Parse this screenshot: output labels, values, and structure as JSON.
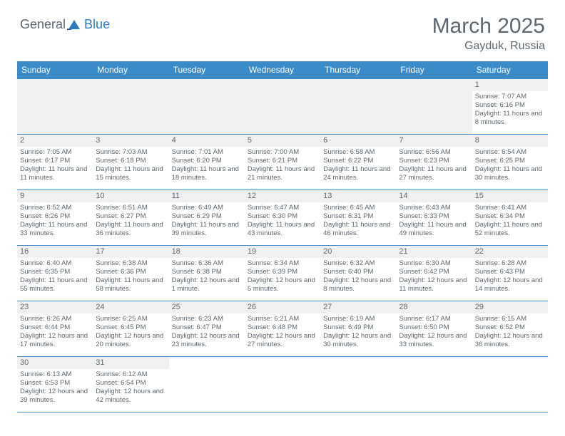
{
  "logo_general": "General",
  "logo_blue": "Blue",
  "month_title": "March 2025",
  "location": "Gayduk, Russia",
  "weekdays": [
    "Sunday",
    "Monday",
    "Tuesday",
    "Wednesday",
    "Thursday",
    "Friday",
    "Saturday"
  ],
  "colors": {
    "header_bg": "#3b8bc8",
    "text": "#5d6770"
  },
  "weeks": [
    [
      {
        "blank": true
      },
      {
        "blank": true
      },
      {
        "blank": true
      },
      {
        "blank": true
      },
      {
        "blank": true
      },
      {
        "blank": true
      },
      {
        "num": "1",
        "sunrise": "Sunrise: 7:07 AM",
        "sunset": "Sunset: 6:16 PM",
        "daylight": "Daylight: 11 hours and 8 minutes."
      }
    ],
    [
      {
        "num": "2",
        "sunrise": "Sunrise: 7:05 AM",
        "sunset": "Sunset: 6:17 PM",
        "daylight": "Daylight: 11 hours and 11 minutes."
      },
      {
        "num": "3",
        "sunrise": "Sunrise: 7:03 AM",
        "sunset": "Sunset: 6:18 PM",
        "daylight": "Daylight: 11 hours and 15 minutes."
      },
      {
        "num": "4",
        "sunrise": "Sunrise: 7:01 AM",
        "sunset": "Sunset: 6:20 PM",
        "daylight": "Daylight: 11 hours and 18 minutes."
      },
      {
        "num": "5",
        "sunrise": "Sunrise: 7:00 AM",
        "sunset": "Sunset: 6:21 PM",
        "daylight": "Daylight: 11 hours and 21 minutes."
      },
      {
        "num": "6",
        "sunrise": "Sunrise: 6:58 AM",
        "sunset": "Sunset: 6:22 PM",
        "daylight": "Daylight: 11 hours and 24 minutes."
      },
      {
        "num": "7",
        "sunrise": "Sunrise: 6:56 AM",
        "sunset": "Sunset: 6:23 PM",
        "daylight": "Daylight: 11 hours and 27 minutes."
      },
      {
        "num": "8",
        "sunrise": "Sunrise: 6:54 AM",
        "sunset": "Sunset: 6:25 PM",
        "daylight": "Daylight: 11 hours and 30 minutes."
      }
    ],
    [
      {
        "num": "9",
        "sunrise": "Sunrise: 6:52 AM",
        "sunset": "Sunset: 6:26 PM",
        "daylight": "Daylight: 11 hours and 33 minutes."
      },
      {
        "num": "10",
        "sunrise": "Sunrise: 6:51 AM",
        "sunset": "Sunset: 6:27 PM",
        "daylight": "Daylight: 11 hours and 36 minutes."
      },
      {
        "num": "11",
        "sunrise": "Sunrise: 6:49 AM",
        "sunset": "Sunset: 6:29 PM",
        "daylight": "Daylight: 11 hours and 39 minutes."
      },
      {
        "num": "12",
        "sunrise": "Sunrise: 6:47 AM",
        "sunset": "Sunset: 6:30 PM",
        "daylight": "Daylight: 11 hours and 43 minutes."
      },
      {
        "num": "13",
        "sunrise": "Sunrise: 6:45 AM",
        "sunset": "Sunset: 6:31 PM",
        "daylight": "Daylight: 11 hours and 46 minutes."
      },
      {
        "num": "14",
        "sunrise": "Sunrise: 6:43 AM",
        "sunset": "Sunset: 6:33 PM",
        "daylight": "Daylight: 11 hours and 49 minutes."
      },
      {
        "num": "15",
        "sunrise": "Sunrise: 6:41 AM",
        "sunset": "Sunset: 6:34 PM",
        "daylight": "Daylight: 11 hours and 52 minutes."
      }
    ],
    [
      {
        "num": "16",
        "sunrise": "Sunrise: 6:40 AM",
        "sunset": "Sunset: 6:35 PM",
        "daylight": "Daylight: 11 hours and 55 minutes."
      },
      {
        "num": "17",
        "sunrise": "Sunrise: 6:38 AM",
        "sunset": "Sunset: 6:36 PM",
        "daylight": "Daylight: 11 hours and 58 minutes."
      },
      {
        "num": "18",
        "sunrise": "Sunrise: 6:36 AM",
        "sunset": "Sunset: 6:38 PM",
        "daylight": "Daylight: 12 hours and 1 minute."
      },
      {
        "num": "19",
        "sunrise": "Sunrise: 6:34 AM",
        "sunset": "Sunset: 6:39 PM",
        "daylight": "Daylight: 12 hours and 5 minutes."
      },
      {
        "num": "20",
        "sunrise": "Sunrise: 6:32 AM",
        "sunset": "Sunset: 6:40 PM",
        "daylight": "Daylight: 12 hours and 8 minutes."
      },
      {
        "num": "21",
        "sunrise": "Sunrise: 6:30 AM",
        "sunset": "Sunset: 6:42 PM",
        "daylight": "Daylight: 12 hours and 11 minutes."
      },
      {
        "num": "22",
        "sunrise": "Sunrise: 6:28 AM",
        "sunset": "Sunset: 6:43 PM",
        "daylight": "Daylight: 12 hours and 14 minutes."
      }
    ],
    [
      {
        "num": "23",
        "sunrise": "Sunrise: 6:26 AM",
        "sunset": "Sunset: 6:44 PM",
        "daylight": "Daylight: 12 hours and 17 minutes."
      },
      {
        "num": "24",
        "sunrise": "Sunrise: 6:25 AM",
        "sunset": "Sunset: 6:45 PM",
        "daylight": "Daylight: 12 hours and 20 minutes."
      },
      {
        "num": "25",
        "sunrise": "Sunrise: 6:23 AM",
        "sunset": "Sunset: 6:47 PM",
        "daylight": "Daylight: 12 hours and 23 minutes."
      },
      {
        "num": "26",
        "sunrise": "Sunrise: 6:21 AM",
        "sunset": "Sunset: 6:48 PM",
        "daylight": "Daylight: 12 hours and 27 minutes."
      },
      {
        "num": "27",
        "sunrise": "Sunrise: 6:19 AM",
        "sunset": "Sunset: 6:49 PM",
        "daylight": "Daylight: 12 hours and 30 minutes."
      },
      {
        "num": "28",
        "sunrise": "Sunrise: 6:17 AM",
        "sunset": "Sunset: 6:50 PM",
        "daylight": "Daylight: 12 hours and 33 minutes."
      },
      {
        "num": "29",
        "sunrise": "Sunrise: 6:15 AM",
        "sunset": "Sunset: 6:52 PM",
        "daylight": "Daylight: 12 hours and 36 minutes."
      }
    ],
    [
      {
        "num": "30",
        "sunrise": "Sunrise: 6:13 AM",
        "sunset": "Sunset: 6:53 PM",
        "daylight": "Daylight: 12 hours and 39 minutes."
      },
      {
        "num": "31",
        "sunrise": "Sunrise: 6:12 AM",
        "sunset": "Sunset: 6:54 PM",
        "daylight": "Daylight: 12 hours and 42 minutes."
      },
      {
        "blank": true
      },
      {
        "blank": true
      },
      {
        "blank": true
      },
      {
        "blank": true
      },
      {
        "blank": true
      }
    ]
  ]
}
